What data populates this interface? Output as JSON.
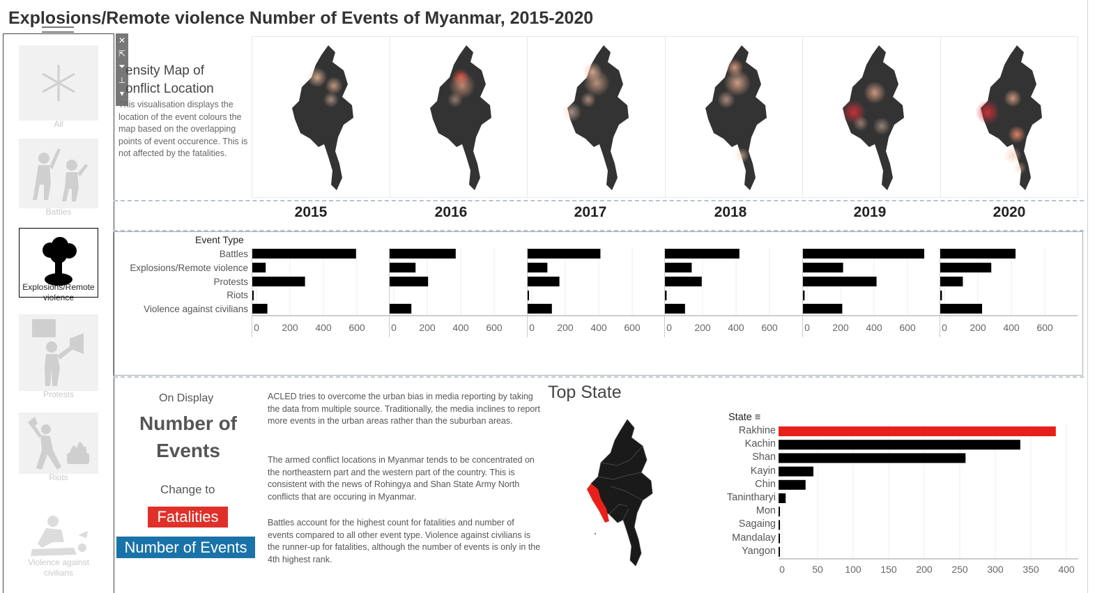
{
  "title": "Explosions/Remote violence Number of Events of Myanmar, 2015-2020",
  "filter_panel": {
    "items": [
      {
        "label": "All",
        "icon": "asterisk-icon",
        "selected": false
      },
      {
        "label": "Battles",
        "icon": "battle-icon",
        "selected": false
      },
      {
        "label": "Explosions/Remote violence",
        "icon": "explosion-icon",
        "selected": true
      },
      {
        "label": "Protests",
        "icon": "protest-icon",
        "selected": false
      },
      {
        "label": "Riots",
        "icon": "riot-icon",
        "selected": false
      },
      {
        "label": "Violence against civilians",
        "icon": "violence-icon",
        "selected": false
      }
    ]
  },
  "toolbar": {
    "buttons": [
      {
        "icon": "close-icon",
        "glyph": "✕"
      },
      {
        "icon": "popout-icon",
        "glyph": "⇱"
      },
      {
        "icon": "filter-icon",
        "glyph": "⏷"
      },
      {
        "icon": "pin-icon",
        "glyph": "⊥"
      },
      {
        "icon": "dropdown-icon",
        "glyph": "▾"
      }
    ]
  },
  "density": {
    "title_line1": "ensity Map of",
    "title_line2": "onflict Location",
    "description": "This visualisation displays the location of the event colours the map based on the overlapping points of event occurence. This is not affected by the fatalities."
  },
  "years": [
    "2015",
    "2016",
    "2017",
    "2018",
    "2019",
    "2020"
  ],
  "chart_data": [
    {
      "type": "bar",
      "title": "",
      "header": "Event Type",
      "categories": [
        "Battles",
        "Explosions/Remote violence",
        "Protests",
        "Riots",
        "Violence against civilians"
      ],
      "facets": [
        "2015",
        "2016",
        "2017",
        "2018",
        "2019",
        "2020"
      ],
      "series": [
        {
          "name": "2015",
          "values": [
            620,
            80,
            315,
            5,
            90
          ]
        },
        {
          "name": "2016",
          "values": [
            395,
            155,
            230,
            0,
            130
          ]
        },
        {
          "name": "2017",
          "values": [
            435,
            118,
            190,
            8,
            145
          ]
        },
        {
          "name": "2018",
          "values": [
            445,
            160,
            220,
            10,
            120
          ]
        },
        {
          "name": "2019",
          "values": [
            725,
            240,
            440,
            10,
            235
          ]
        },
        {
          "name": "2020",
          "values": [
            450,
            305,
            135,
            10,
            250
          ]
        }
      ],
      "xticks": [
        "0",
        "200",
        "400",
        "600"
      ],
      "xlim": [
        0,
        750
      ]
    },
    {
      "type": "bar",
      "title": "Top State",
      "header": "State",
      "categories": [
        "Rakhine",
        "Kachin",
        "Shan",
        "Kayin",
        "Chin",
        "Tanintharyi",
        "Mon",
        "Sagaing",
        "Mandalay",
        "Yangon"
      ],
      "values": [
        390,
        340,
        263,
        49,
        38,
        10,
        2,
        2,
        1,
        1
      ],
      "highlight": "Rakhine",
      "highlight_color": "#e8201c",
      "xticks": [
        "0",
        "50",
        "100",
        "150",
        "200",
        "250",
        "300",
        "350",
        "400"
      ],
      "xlim": [
        0,
        400
      ]
    }
  ],
  "on_display": {
    "label": "On Display",
    "metric_line1": "Number of",
    "metric_line2": "Events",
    "change_to": "Change to",
    "btn_fatalities": "Fatalities",
    "btn_events": "Number of Events"
  },
  "paragraphs": [
    "ACLED tries to overcome the urban bias in media reporting by taking the data from multiple source. Traditionally, the media inclines to report more events in the urban areas rather than the suburban areas.",
    "The armed conflict locations in Myanmar tends to be concentrated on the northeastern part and the western part of the country. This is consistent with the news of Rohingya and Shan State Army North conflicts that are occuring in Myanmar.",
    "Battles account for the highest count for fatalities and number of events compared to all other event type. Violence against civilians is the runner-up for fatalities, although the number of events is only in the 4th highest rank."
  ],
  "colors": {
    "bar": "#000000",
    "highlight": "#e8201c",
    "map_land": "#333333",
    "fatalities_button": "#e0302a",
    "events_button": "#1a73a8"
  }
}
